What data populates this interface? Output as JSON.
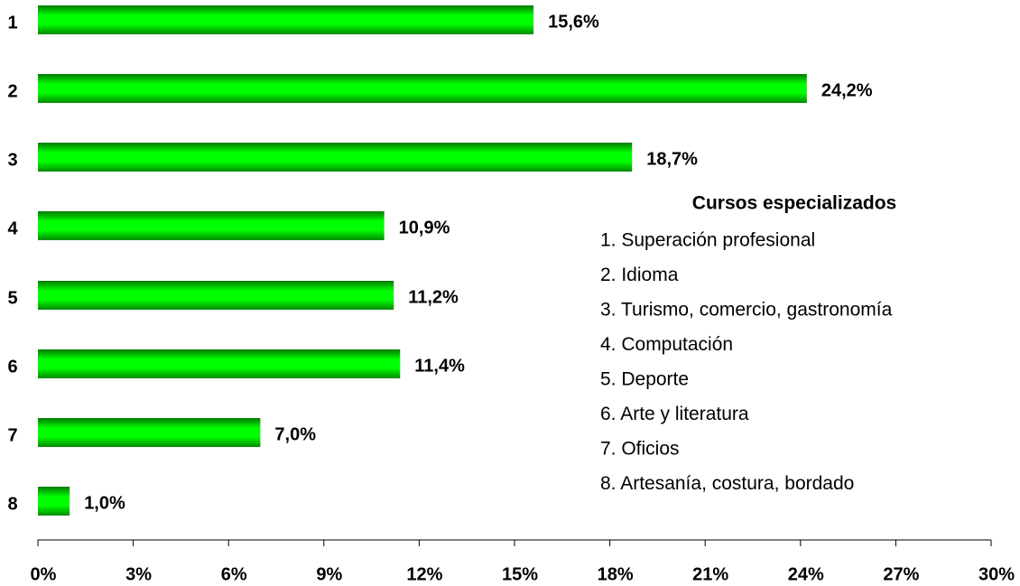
{
  "chart_data": {
    "type": "hbar",
    "categories": [
      "1",
      "2",
      "3",
      "4",
      "5",
      "6",
      "7",
      "8"
    ],
    "values": [
      15.6,
      24.2,
      18.7,
      10.9,
      11.2,
      11.4,
      7.0,
      1.0
    ],
    "value_labels": [
      "15,6%",
      "24,2%",
      "18,7%",
      "10,9%",
      "11,2%",
      "11,4%",
      "7,0%",
      "1,0%"
    ],
    "color": "#00ff00",
    "xlim": [
      0,
      30
    ],
    "xticks": [
      {
        "value": 0,
        "label": "0%"
      },
      {
        "value": 3,
        "label": "3%"
      },
      {
        "value": 6,
        "label": "6%"
      },
      {
        "value": 9,
        "label": "9%"
      },
      {
        "value": 12,
        "label": "12%"
      },
      {
        "value": 15,
        "label": "15%"
      },
      {
        "value": 18,
        "label": "18%"
      },
      {
        "value": 21,
        "label": "21%"
      },
      {
        "value": 24,
        "label": "24%"
      },
      {
        "value": 27,
        "label": "27%"
      },
      {
        "value": 30,
        "label": "30%"
      }
    ],
    "legend_title": "Cursos especializados",
    "legend_items": [
      "1. Superación profesional",
      "2. Idioma",
      "3. Turismo, comercio, gastronomía",
      "4. Computación",
      "5. Deporte",
      "6. Arte y literatura",
      "7. Oficios",
      "8. Artesanía, costura, bordado"
    ]
  }
}
